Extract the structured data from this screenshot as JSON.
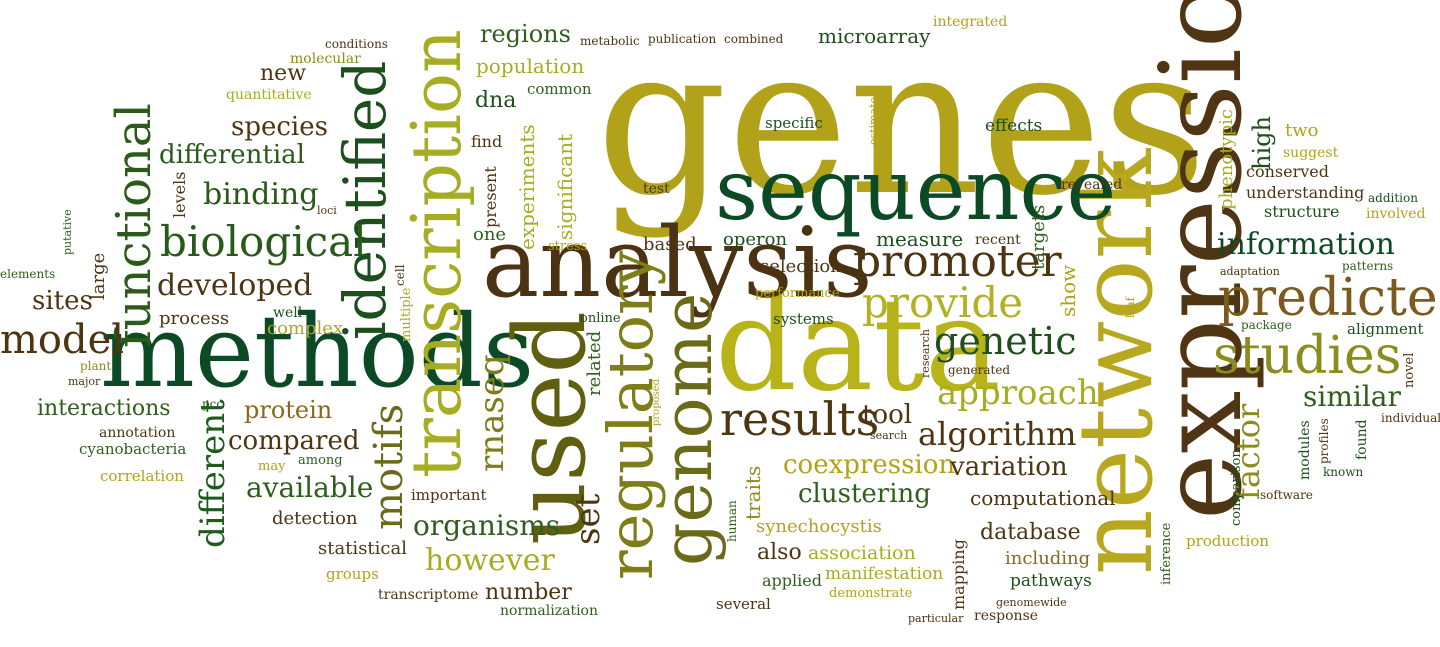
{
  "palette": {
    "dark_green": "#0e4a24",
    "green": "#2f5e1e",
    "olive": "#8a8d1c",
    "gold": "#b2a21a",
    "lime": "#a7b02a",
    "brown": "#5a3a16",
    "light_gold": "#c9b43a"
  },
  "words": [
    "genes",
    "expression",
    "network",
    "data",
    "methods",
    "analysis",
    "sequence",
    "used",
    "transcription",
    "identified",
    "genome",
    "regulatory",
    "predicted",
    "studies",
    "functional",
    "promoter",
    "provide",
    "biological",
    "results",
    "motifs",
    "information",
    "genetic",
    "approach",
    "different",
    "factor",
    "similar",
    "algorithm",
    "model",
    "rnaseq",
    "set",
    "binding",
    "developed",
    "differential",
    "species",
    "coexpression",
    "variation",
    "clustering",
    "organisms",
    "however",
    "sites",
    "compared",
    "available",
    "interactions",
    "protein",
    "tool",
    "computational",
    "database",
    "regions",
    "population",
    "microarray",
    "dna",
    "experiments",
    "significant",
    "high",
    "phenotypic",
    "operon",
    "measure",
    "selection",
    "show",
    "targets",
    "new",
    "quantitative",
    "molecular",
    "conditions",
    "levels",
    "large",
    "putative",
    "elements",
    "plant",
    "major",
    "pcc",
    "annotation",
    "cyanobacteria",
    "correlation",
    "may",
    "among",
    "process",
    "well",
    "complex",
    "cell",
    "multiple",
    "statistical",
    "groups",
    "transcriptome",
    "number",
    "normalization",
    "detection",
    "important",
    "related",
    "online",
    "proposed",
    "performance",
    "systems",
    "human",
    "traits",
    "synechocystis",
    "also",
    "association",
    "applied",
    "manifestation",
    "demonstrate",
    "several",
    "mapping",
    "pathways",
    "including",
    "genomewide",
    "response",
    "particular",
    "inference",
    "production",
    "software",
    "comparison",
    "modules",
    "profiles",
    "found",
    "known",
    "individual",
    "alignment",
    "package",
    "novel",
    "patterns",
    "adaptation",
    "leaf",
    "involved",
    "addition",
    "structure",
    "understanding",
    "conserved",
    "suggest",
    "two",
    "revealed",
    "recent",
    "research",
    "generated",
    "search",
    "metabolic",
    "publication",
    "combined",
    "integrated",
    "common",
    "find",
    "present",
    "one",
    "stress",
    "based",
    "test",
    "specific",
    "effects",
    "estimate",
    "loci"
  ]
}
